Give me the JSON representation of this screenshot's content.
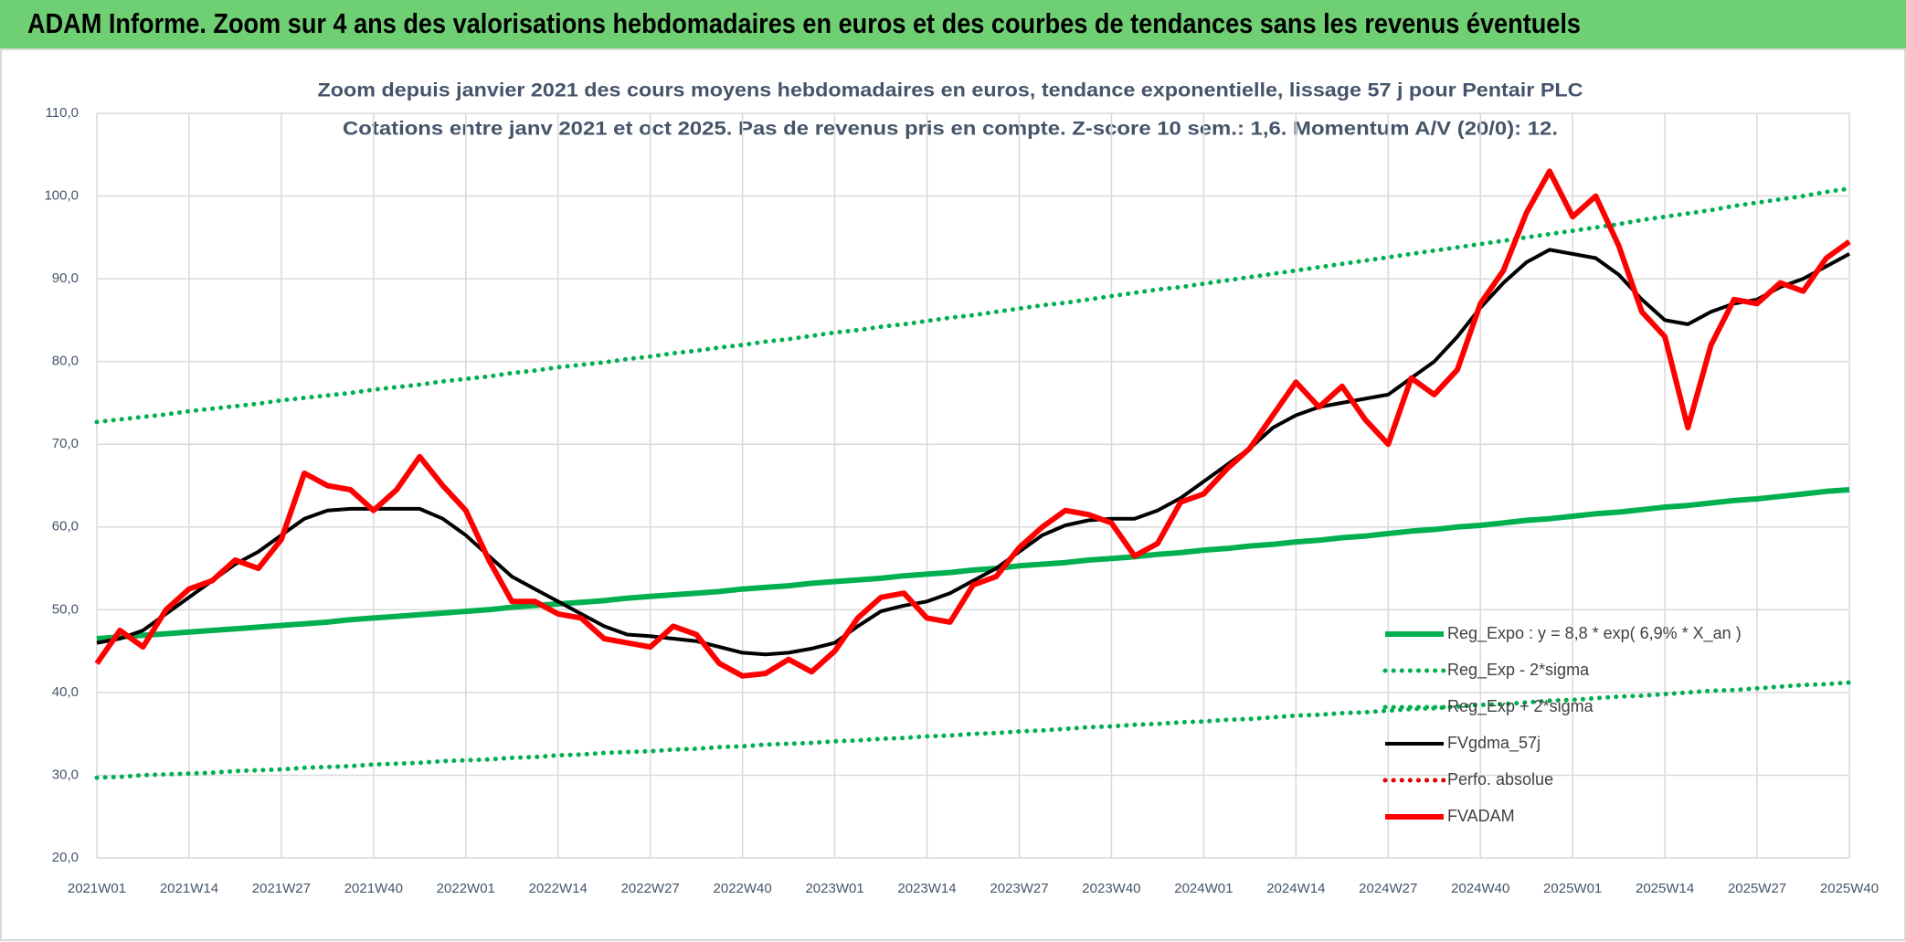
{
  "chart_data": {
    "type": "line",
    "header": "ADAM Informe. Zoom sur 4 ans des valorisations hebdomadaires en euros et des courbes de tendances sans les revenus éventuels",
    "title": "Zoom depuis janvier 2021 des cours moyens hebdomadaires en euros, tendance exponentielle, lissage 57 j pour Pentair PLC",
    "subtitle": "Cotations entre janv 2021 et oct 2025. Pas de revenus pris en compte. Z-score 10 sem.: 1,6. Momentum A/V (20/0): 12.",
    "categories": [
      "2021W01",
      null,
      null,
      null,
      "2021W14",
      null,
      null,
      null,
      "2021W27",
      null,
      null,
      null,
      "2021W40",
      null,
      null,
      null,
      "2022W01",
      null,
      null,
      null,
      "2022W14",
      null,
      null,
      null,
      "2022W27",
      null,
      null,
      null,
      "2022W40",
      null,
      null,
      null,
      "2023W01",
      null,
      null,
      null,
      "2023W14",
      null,
      null,
      null,
      "2023W27",
      null,
      null,
      null,
      "2023W40",
      null,
      null,
      null,
      "2024W01",
      null,
      null,
      null,
      "2024W14",
      null,
      null,
      null,
      "2024W27",
      null,
      null,
      null,
      "2024W40",
      null,
      null,
      null,
      "2025W01",
      null,
      null,
      null,
      "2025W14",
      null,
      null,
      null,
      "2025W27",
      null,
      null,
      null,
      "2025W40"
    ],
    "ylim": [
      20,
      110
    ],
    "yticks": [
      {
        "value": 20,
        "label": "20,0"
      },
      {
        "value": 30,
        "label": "30,0"
      },
      {
        "value": 40,
        "label": "40,0"
      },
      {
        "value": 50,
        "label": "50,0"
      },
      {
        "value": 60,
        "label": "60,0"
      },
      {
        "value": 70,
        "label": "70,0"
      },
      {
        "value": 80,
        "label": "80,0"
      },
      {
        "value": 90,
        "label": "90,0"
      },
      {
        "value": 100,
        "label": "100,0"
      },
      {
        "value": 110,
        "label": "110,0"
      }
    ],
    "grid": true,
    "legend": "lower right",
    "series": [
      {
        "name": "Reg_Expo : y = 8,8 * exp( 6,9% *  X_an )",
        "color": "#00b050",
        "line_style": "solid",
        "values": [
          46.5,
          46.7,
          46.9,
          47.1,
          47.3,
          47.5,
          47.7,
          47.9,
          48.1,
          48.3,
          48.5,
          48.8,
          49.0,
          49.2,
          49.4,
          49.6,
          49.8,
          50.0,
          50.3,
          50.5,
          50.7,
          50.9,
          51.1,
          51.4,
          51.6,
          51.8,
          52.0,
          52.2,
          52.5,
          52.7,
          52.9,
          53.2,
          53.4,
          53.6,
          53.8,
          54.1,
          54.3,
          54.5,
          54.8,
          55.0,
          55.3,
          55.5,
          55.7,
          56.0,
          56.2,
          56.4,
          56.7,
          56.9,
          57.2,
          57.4,
          57.7,
          57.9,
          58.2,
          58.4,
          58.7,
          58.9,
          59.2,
          59.5,
          59.7,
          60.0,
          60.2,
          60.5,
          60.8,
          61.0,
          61.3,
          61.6,
          61.8,
          62.1,
          62.4,
          62.6,
          62.9,
          63.2,
          63.4,
          63.7,
          64.0,
          64.3,
          64.5
        ]
      },
      {
        "name": "Reg_Exp - 2*sigma",
        "color": "#00b050",
        "line_style": "dotted",
        "values": [
          29.7,
          29.8,
          30.0,
          30.1,
          30.2,
          30.3,
          30.5,
          30.6,
          30.7,
          30.9,
          31.0,
          31.1,
          31.3,
          31.4,
          31.5,
          31.7,
          31.8,
          31.9,
          32.1,
          32.2,
          32.4,
          32.5,
          32.7,
          32.8,
          32.9,
          33.1,
          33.2,
          33.4,
          33.5,
          33.7,
          33.8,
          33.9,
          34.1,
          34.2,
          34.4,
          34.5,
          34.7,
          34.8,
          35.0,
          35.1,
          35.3,
          35.4,
          35.6,
          35.8,
          35.9,
          36.1,
          36.2,
          36.4,
          36.5,
          36.7,
          36.8,
          37.0,
          37.2,
          37.3,
          37.5,
          37.6,
          37.8,
          38.0,
          38.1,
          38.3,
          38.5,
          38.6,
          38.8,
          39.0,
          39.1,
          39.3,
          39.5,
          39.6,
          39.8,
          40.0,
          40.2,
          40.3,
          40.5,
          40.7,
          40.9,
          41.0,
          41.2
        ]
      },
      {
        "name": "Reg_Exp + 2*sigma",
        "color": "#00b050",
        "line_style": "dotted",
        "values": [
          72.7,
          73.0,
          73.3,
          73.6,
          74.0,
          74.3,
          74.6,
          74.9,
          75.3,
          75.6,
          75.9,
          76.2,
          76.6,
          76.9,
          77.2,
          77.6,
          77.9,
          78.2,
          78.6,
          78.9,
          79.3,
          79.6,
          79.9,
          80.3,
          80.6,
          81.0,
          81.3,
          81.7,
          82.0,
          82.4,
          82.7,
          83.1,
          83.5,
          83.8,
          84.2,
          84.5,
          84.9,
          85.3,
          85.6,
          86.0,
          86.4,
          86.8,
          87.1,
          87.5,
          87.9,
          88.3,
          88.7,
          89.0,
          89.4,
          89.8,
          90.2,
          90.6,
          91.0,
          91.4,
          91.8,
          92.2,
          92.6,
          93.0,
          93.4,
          93.8,
          94.2,
          94.6,
          95.0,
          95.4,
          95.8,
          96.2,
          96.6,
          97.1,
          97.5,
          97.9,
          98.3,
          98.8,
          99.2,
          99.6,
          100.0,
          100.5,
          100.9
        ]
      },
      {
        "name": "FVgdma_57j",
        "color": "#000000",
        "line_style": "solid",
        "values": [
          46,
          46.5,
          47.5,
          49.5,
          51.5,
          53.5,
          55.5,
          57,
          59,
          61,
          62,
          62.2,
          62.2,
          62.2,
          62.2,
          61,
          59,
          56.5,
          54,
          52.5,
          51,
          49.5,
          48,
          47,
          46.8,
          46.5,
          46.2,
          45.5,
          44.8,
          44.6,
          44.8,
          45.3,
          46,
          48,
          49.8,
          50.5,
          51,
          52,
          53.5,
          55,
          57,
          59,
          60.2,
          60.8,
          61,
          61,
          62,
          63.5,
          65.5,
          67.5,
          69.5,
          72,
          73.5,
          74.5,
          75,
          75.5,
          76,
          78,
          80,
          83,
          86.5,
          89.5,
          92,
          93.5,
          93,
          92.5,
          90.5,
          87.5,
          85,
          84.5,
          86,
          87,
          87.5,
          89,
          90,
          91.5,
          93
        ]
      },
      {
        "name": "Perfo. absolue",
        "color": "#e00000",
        "line_style": "dotted",
        "values": [
          null,
          null,
          null,
          null,
          null,
          null,
          null,
          null,
          null,
          null,
          null,
          null,
          null,
          null,
          null,
          null,
          null,
          null,
          null,
          null,
          null,
          null,
          null,
          null,
          null,
          null,
          null,
          null,
          null,
          null,
          null,
          null,
          null,
          null,
          null,
          null,
          null,
          null,
          null,
          null,
          null,
          null,
          null,
          null,
          null,
          null,
          null,
          null,
          null,
          null,
          null,
          null,
          null,
          null,
          null,
          null,
          null,
          null,
          null,
          null,
          null,
          null,
          null,
          null,
          null,
          null,
          null,
          null,
          null,
          null,
          null,
          null,
          null,
          null,
          null,
          null,
          null
        ]
      },
      {
        "name": "FVADAM",
        "color": "#ff0000",
        "line_style": "solid",
        "values": [
          43.5,
          47.5,
          45.5,
          50,
          52.5,
          53.5,
          56,
          55,
          58.5,
          66.5,
          65,
          64.5,
          62,
          64.5,
          68.5,
          65,
          62,
          56,
          51,
          51,
          49.5,
          49,
          46.5,
          46,
          45.5,
          48,
          47,
          43.5,
          42,
          42.3,
          44,
          42.5,
          45,
          49,
          51.5,
          52,
          49,
          48.5,
          53,
          54,
          57.5,
          60,
          62,
          61.5,
          60.5,
          56.5,
          58,
          63,
          64,
          67,
          69.5,
          73.5,
          77.5,
          74.5,
          77,
          73,
          70,
          78,
          76,
          79,
          87,
          91,
          98,
          103,
          97.5,
          100,
          94,
          86,
          83,
          72,
          82,
          87.5,
          87,
          89.5,
          88.5,
          92.5,
          94.5
        ]
      }
    ]
  }
}
